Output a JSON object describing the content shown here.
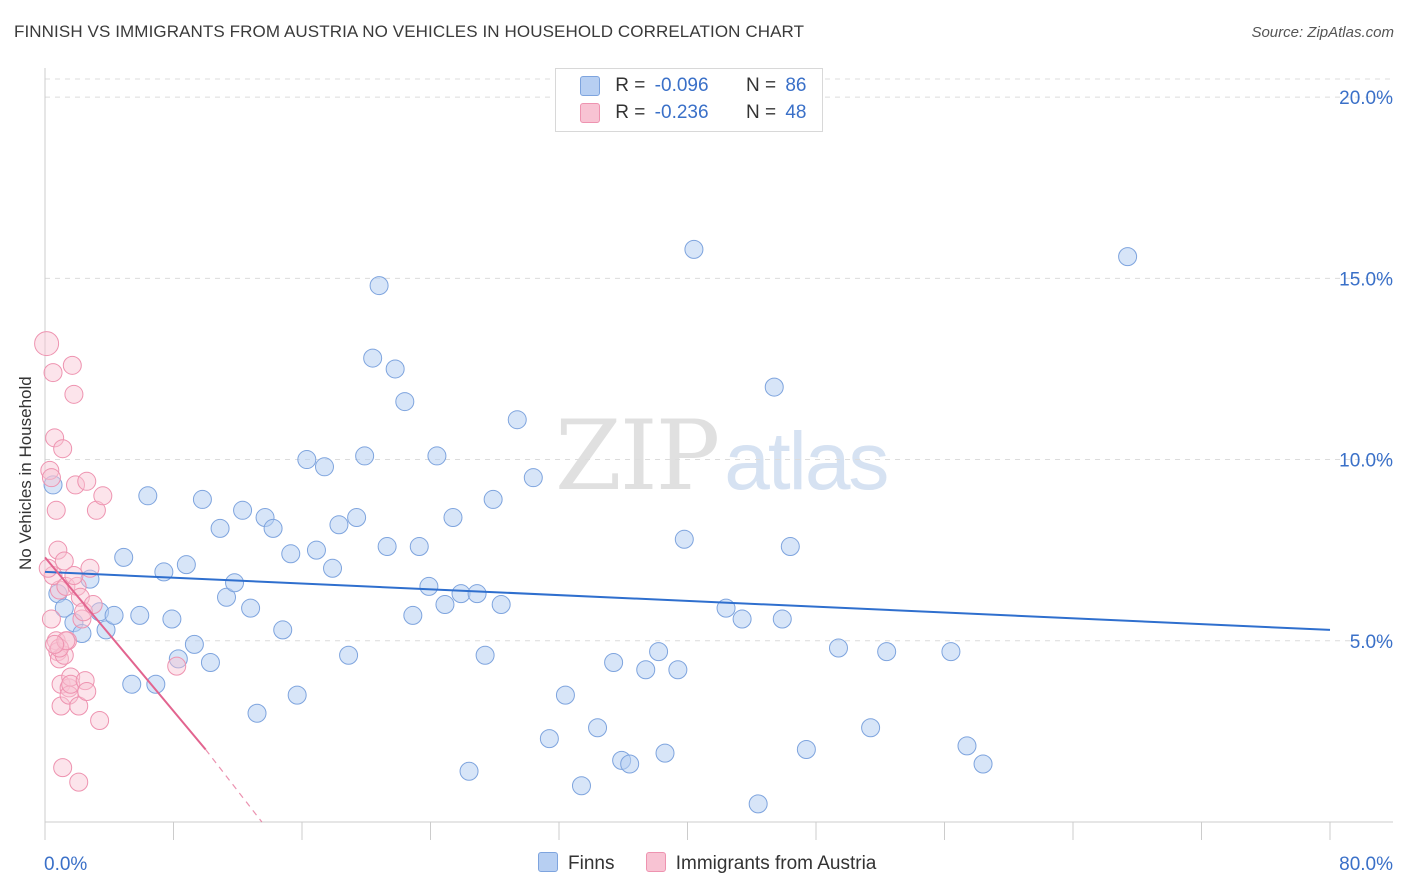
{
  "title": "FINNISH VS IMMIGRANTS FROM AUSTRIA NO VEHICLES IN HOUSEHOLD CORRELATION CHART",
  "source": "Source: ZipAtlas.com",
  "watermark": {
    "zip": "ZIP",
    "atlas": "atlas"
  },
  "colors": {
    "finns_fill": "#b7cff2",
    "finns_stroke": "#7ea4de",
    "finns_line": "#2f6fce",
    "austria_fill": "#f8c3d3",
    "austria_stroke": "#ee93b0",
    "austria_line": "#e2648f",
    "axis_text": "#3a70c8",
    "grid": "#dcdcdc"
  },
  "legend": {
    "rows": [
      {
        "r_label": "R =",
        "r_value": "-0.096",
        "n_label": "N =",
        "n_value": "86"
      },
      {
        "r_label": "R =",
        "r_value": "-0.236",
        "n_label": "N =",
        "n_value": "48"
      }
    ]
  },
  "bottom_legend": {
    "finns": "Finns",
    "austria": "Immigrants from Austria"
  },
  "chart_data": {
    "type": "scatter",
    "title": "FINNISH VS IMMIGRANTS FROM AUSTRIA NO VEHICLES IN HOUSEHOLD CORRELATION CHART",
    "xlabel": "",
    "ylabel": "No Vehicles in Household",
    "xlim": [
      0,
      80
    ],
    "ylim": [
      0,
      20.5
    ],
    "x_tick_labels": [
      "0.0%",
      "80.0%"
    ],
    "y_ticks": [
      5,
      10,
      15,
      20
    ],
    "y_tick_labels": [
      "5.0%",
      "10.0%",
      "15.0%",
      "20.0%"
    ],
    "grid": true,
    "legend_position": "top-center",
    "series": [
      {
        "name": "Finns",
        "r": -0.096,
        "n": 86,
        "trend": {
          "x": [
            0,
            80
          ],
          "y": [
            6.9,
            5.3
          ]
        },
        "points": [
          [
            0.5,
            9.3
          ],
          [
            0.8,
            6.3
          ],
          [
            1.2,
            5.9
          ],
          [
            1.8,
            5.5
          ],
          [
            2.3,
            5.2
          ],
          [
            2.8,
            6.7
          ],
          [
            3.4,
            5.8
          ],
          [
            3.8,
            5.3
          ],
          [
            4.3,
            5.7
          ],
          [
            4.9,
            7.3
          ],
          [
            5.4,
            3.8
          ],
          [
            5.9,
            5.7
          ],
          [
            6.4,
            9.0
          ],
          [
            6.9,
            3.8
          ],
          [
            7.4,
            6.9
          ],
          [
            7.9,
            5.6
          ],
          [
            8.3,
            4.5
          ],
          [
            8.8,
            7.1
          ],
          [
            9.3,
            4.9
          ],
          [
            9.8,
            8.9
          ],
          [
            10.3,
            4.4
          ],
          [
            10.9,
            8.1
          ],
          [
            11.3,
            6.2
          ],
          [
            11.8,
            6.6
          ],
          [
            12.3,
            8.6
          ],
          [
            12.8,
            5.9
          ],
          [
            13.2,
            3.0
          ],
          [
            13.7,
            8.4
          ],
          [
            14.2,
            8.1
          ],
          [
            14.8,
            5.3
          ],
          [
            15.3,
            7.4
          ],
          [
            15.7,
            3.5
          ],
          [
            16.3,
            10.0
          ],
          [
            16.9,
            7.5
          ],
          [
            17.4,
            9.8
          ],
          [
            17.9,
            7.0
          ],
          [
            18.3,
            8.2
          ],
          [
            18.9,
            4.6
          ],
          [
            19.4,
            8.4
          ],
          [
            19.9,
            10.1
          ],
          [
            20.4,
            12.8
          ],
          [
            20.8,
            14.8
          ],
          [
            21.3,
            7.6
          ],
          [
            21.8,
            12.5
          ],
          [
            22.4,
            11.6
          ],
          [
            22.9,
            5.7
          ],
          [
            23.3,
            7.6
          ],
          [
            23.9,
            6.5
          ],
          [
            24.4,
            10.1
          ],
          [
            24.9,
            6.0
          ],
          [
            25.4,
            8.4
          ],
          [
            25.9,
            6.3
          ],
          [
            26.4,
            1.4
          ],
          [
            26.9,
            6.3
          ],
          [
            27.4,
            4.6
          ],
          [
            27.9,
            8.9
          ],
          [
            28.4,
            6.0
          ],
          [
            29.4,
            11.1
          ],
          [
            30.4,
            9.5
          ],
          [
            31.4,
            2.3
          ],
          [
            32.4,
            3.5
          ],
          [
            33.4,
            1.0
          ],
          [
            34.4,
            2.6
          ],
          [
            35.4,
            4.4
          ],
          [
            35.9,
            1.7
          ],
          [
            36.4,
            1.6
          ],
          [
            37.4,
            4.2
          ],
          [
            38.2,
            4.7
          ],
          [
            38.6,
            1.9
          ],
          [
            39.4,
            4.2
          ],
          [
            39.8,
            7.8
          ],
          [
            40.4,
            15.8
          ],
          [
            42.4,
            5.9
          ],
          [
            43.4,
            5.6
          ],
          [
            44.4,
            0.5
          ],
          [
            45.4,
            12.0
          ],
          [
            45.9,
            5.6
          ],
          [
            46.4,
            7.6
          ],
          [
            47.4,
            2.0
          ],
          [
            49.4,
            4.8
          ],
          [
            51.4,
            2.6
          ],
          [
            52.4,
            4.7
          ],
          [
            56.4,
            4.7
          ],
          [
            57.4,
            2.1
          ],
          [
            67.4,
            15.6
          ],
          [
            58.4,
            1.6
          ]
        ]
      },
      {
        "name": "Immigrants from Austria",
        "r": -0.236,
        "n": 48,
        "trend": {
          "x": [
            0,
            10
          ],
          "y": [
            7.3,
            2.0
          ]
        },
        "trend_dashed": {
          "x": [
            10,
            13.5
          ],
          "y": [
            2.0,
            0.0
          ]
        },
        "points": [
          [
            0.1,
            13.2
          ],
          [
            0.3,
            9.7
          ],
          [
            0.5,
            12.4
          ],
          [
            0.4,
            9.5
          ],
          [
            0.6,
            10.6
          ],
          [
            0.7,
            8.6
          ],
          [
            0.8,
            7.5
          ],
          [
            0.9,
            6.4
          ],
          [
            0.5,
            6.8
          ],
          [
            0.7,
            5.0
          ],
          [
            0.8,
            4.7
          ],
          [
            0.9,
            4.5
          ],
          [
            1.0,
            3.8
          ],
          [
            1.0,
            3.2
          ],
          [
            1.1,
            10.3
          ],
          [
            1.2,
            7.2
          ],
          [
            1.2,
            4.6
          ],
          [
            1.3,
            6.5
          ],
          [
            1.4,
            5.0
          ],
          [
            1.5,
            3.7
          ],
          [
            1.5,
            3.5
          ],
          [
            1.6,
            4.0
          ],
          [
            1.6,
            3.8
          ],
          [
            1.7,
            12.6
          ],
          [
            1.8,
            11.8
          ],
          [
            1.9,
            9.3
          ],
          [
            2.0,
            6.5
          ],
          [
            2.1,
            3.2
          ],
          [
            2.2,
            6.2
          ],
          [
            2.3,
            5.6
          ],
          [
            2.4,
            5.8
          ],
          [
            2.5,
            3.9
          ],
          [
            2.6,
            9.4
          ],
          [
            2.8,
            7.0
          ],
          [
            3.0,
            6.0
          ],
          [
            3.2,
            8.6
          ],
          [
            3.4,
            2.8
          ],
          [
            3.6,
            9.0
          ],
          [
            0.9,
            4.8
          ],
          [
            1.3,
            5.0
          ],
          [
            0.6,
            4.9
          ],
          [
            1.1,
            1.5
          ],
          [
            2.1,
            1.1
          ],
          [
            0.4,
            5.6
          ],
          [
            1.8,
            6.8
          ],
          [
            2.6,
            3.6
          ],
          [
            0.2,
            7.0
          ],
          [
            8.2,
            4.3
          ]
        ]
      }
    ]
  }
}
